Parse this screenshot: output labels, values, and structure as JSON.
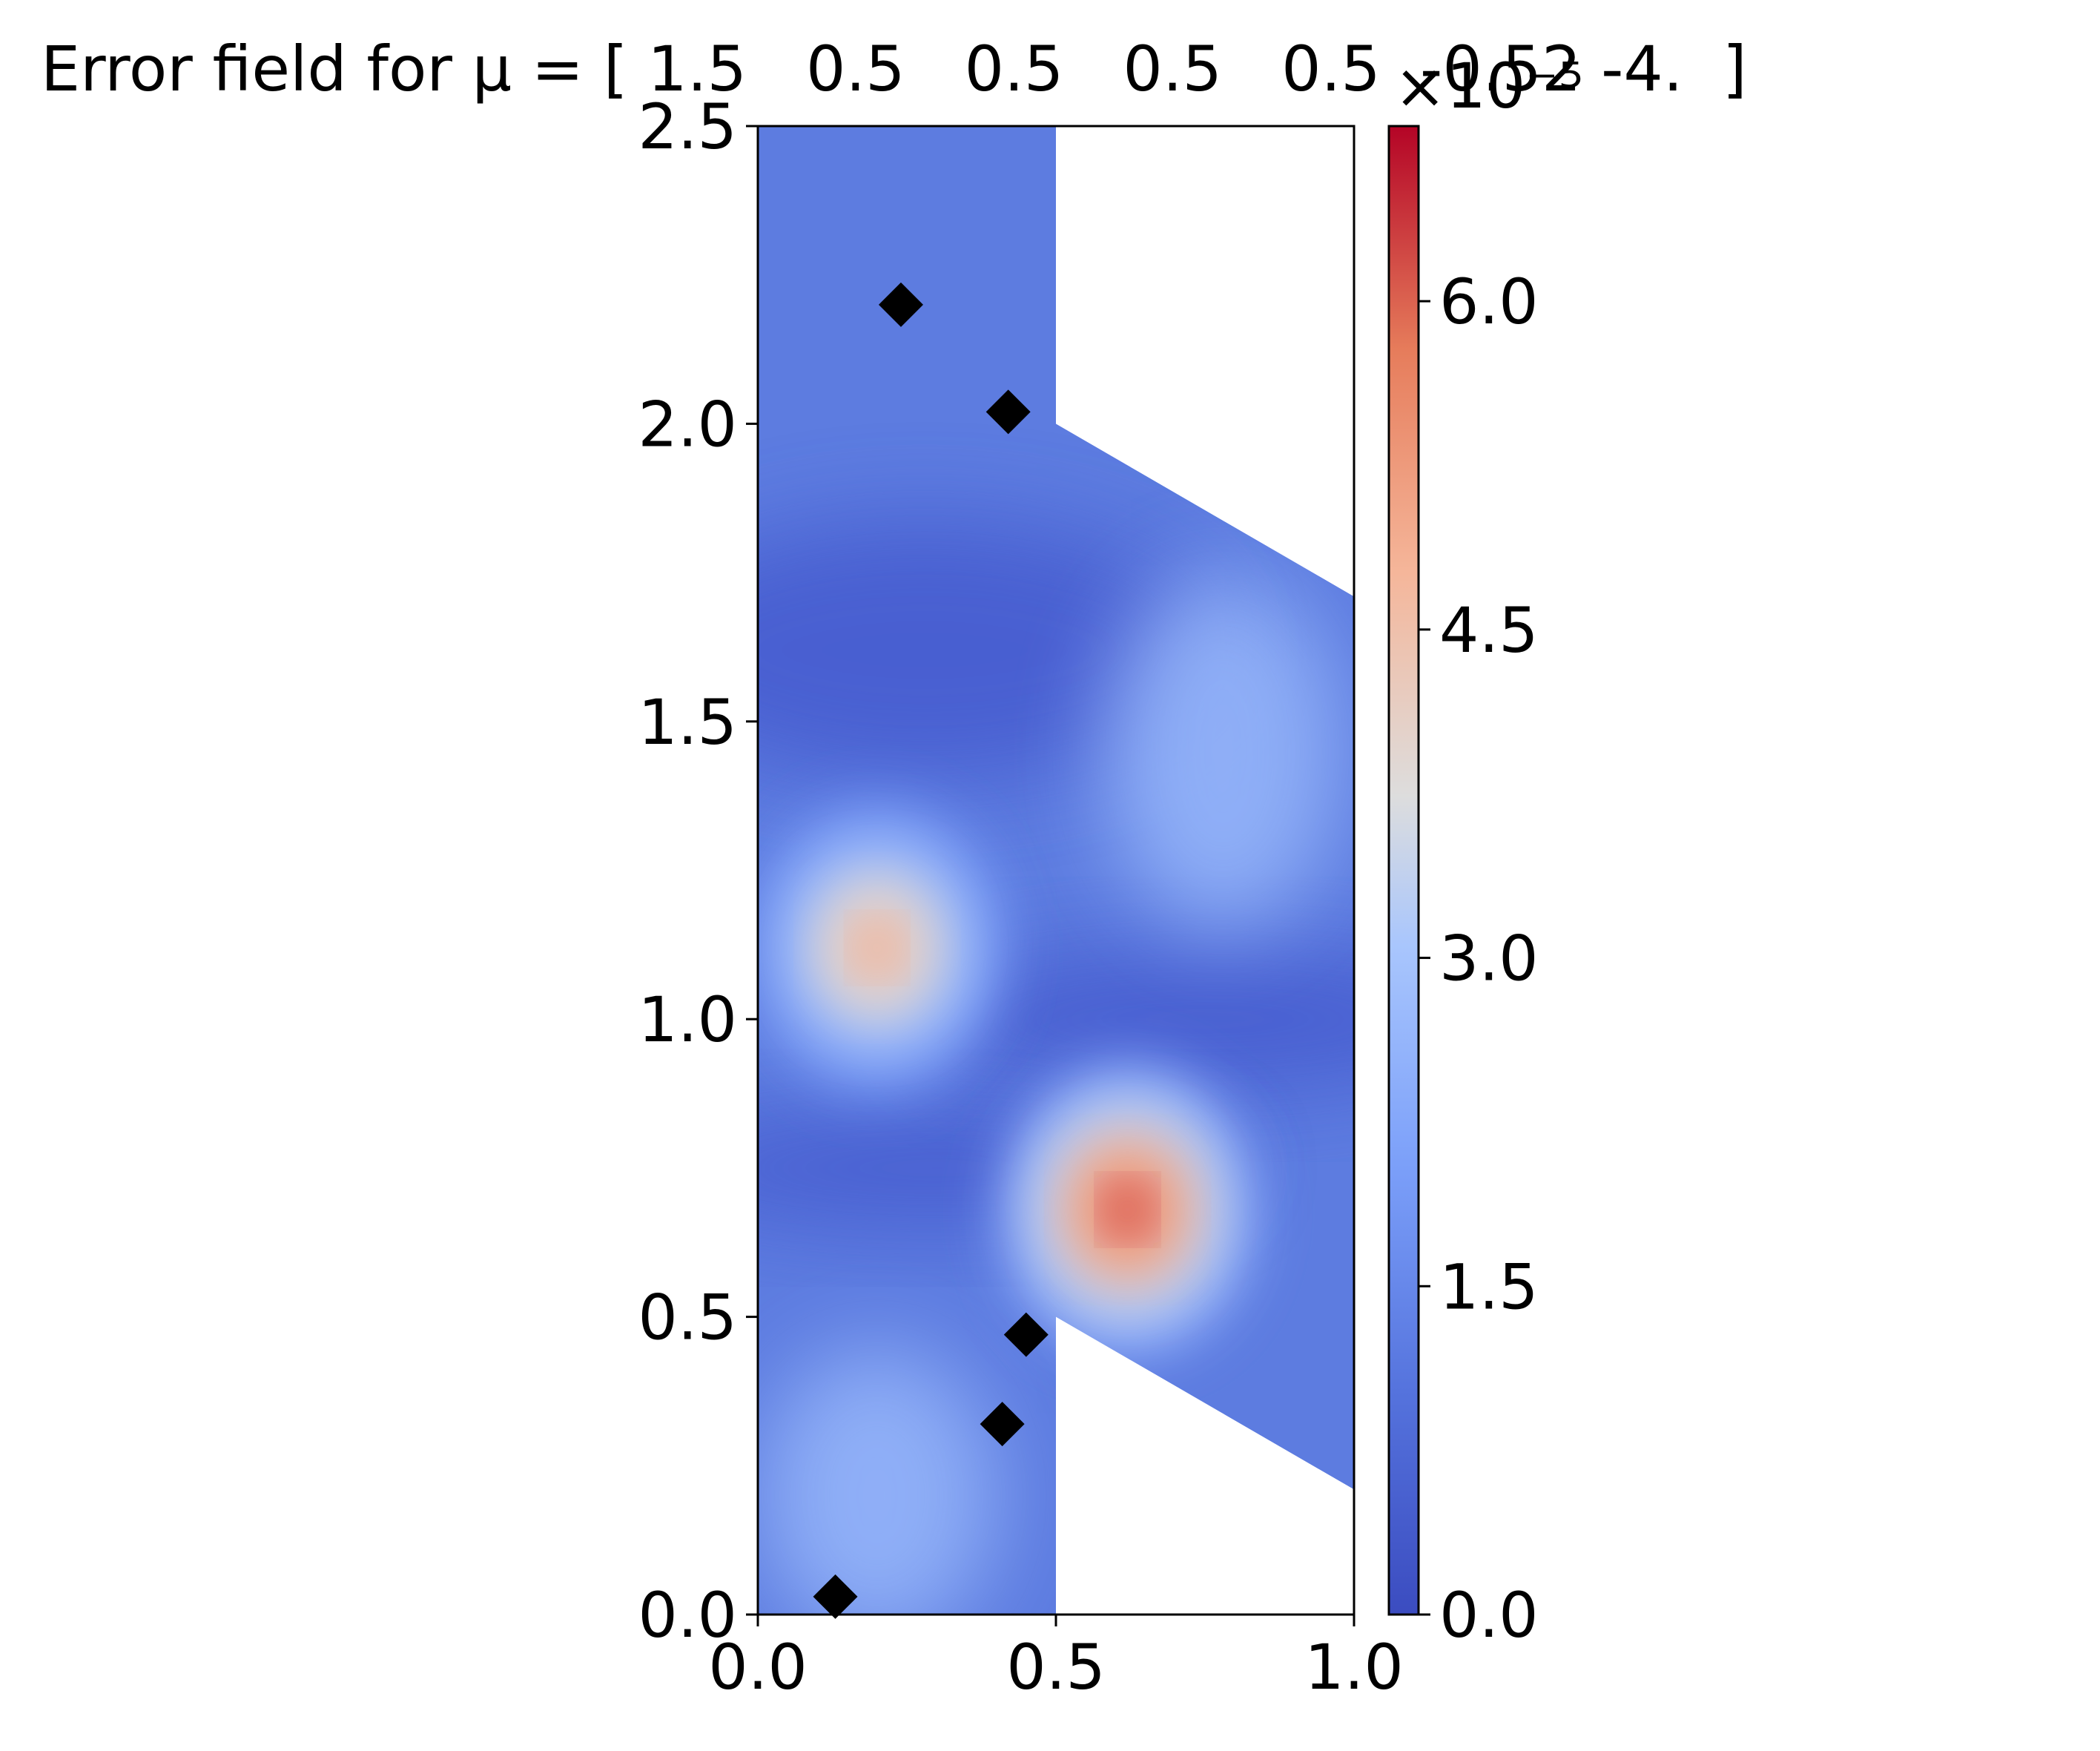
{
  "chart_data": {
    "type": "heatmap",
    "title": "Error field for μ = [ 1.5   0.5   0.5   0.5   0.5  -0.52 -4.  ]",
    "xlabel": "",
    "ylabel": "",
    "xlim": [
      0.0,
      1.0
    ],
    "ylim": [
      0.0,
      2.5
    ],
    "x_ticks": [
      "0.0",
      "0.5",
      "1.0"
    ],
    "y_ticks": [
      "0.0",
      "0.5",
      "1.0",
      "1.5",
      "2.0",
      "2.5"
    ],
    "colormap": "coolwarm",
    "grid": false,
    "colorbar": {
      "range": [
        0.0,
        6.8
      ],
      "ticks": [
        "0.0",
        "1.5",
        "3.0",
        "4.5",
        "6.0"
      ],
      "offset_text": "×10⁻⁵"
    },
    "domain_polygon": [
      [
        0.0,
        0.0
      ],
      [
        0.5,
        0.0
      ],
      [
        0.5,
        0.5
      ],
      [
        1.0,
        0.21
      ],
      [
        1.0,
        1.71
      ],
      [
        0.5,
        2.0
      ],
      [
        0.5,
        2.5
      ],
      [
        0.0,
        2.5
      ]
    ],
    "error_peaks": [
      {
        "x": 0.2,
        "y": 1.12,
        "value": 5.2
      },
      {
        "x": 0.62,
        "y": 0.68,
        "value": 6.6
      }
    ],
    "markers": {
      "shape": "diamond",
      "color": "#000000",
      "points": [
        {
          "x": 0.24,
          "y": 2.2
        },
        {
          "x": 0.42,
          "y": 2.02
        },
        {
          "x": 0.45,
          "y": 0.47
        },
        {
          "x": 0.41,
          "y": 0.32
        },
        {
          "x": 0.13,
          "y": 0.03
        }
      ]
    },
    "colors": {
      "low": "#3b4cc0",
      "mid": "#dddddd",
      "high": "#b40426"
    }
  }
}
